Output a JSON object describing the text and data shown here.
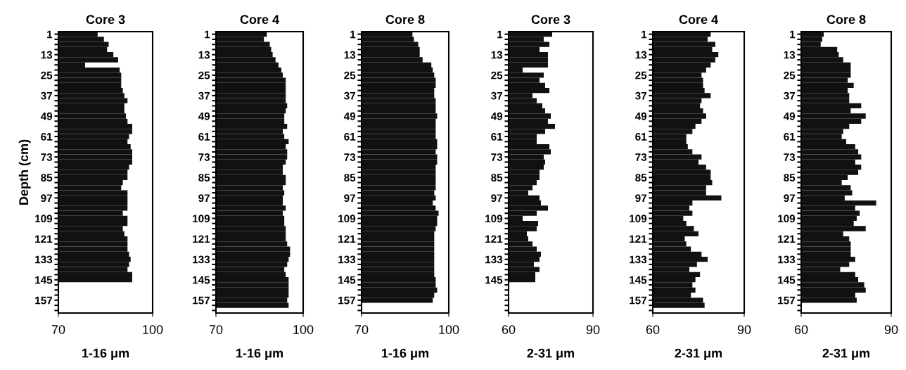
{
  "chart_data": [
    {
      "type": "bar",
      "orientation": "horizontal",
      "title": "Core 3",
      "xlabel": "1-16 μm",
      "ylabel": "Depth (cm)",
      "color": "#111111",
      "xlim": [
        70,
        100
      ],
      "xticks": [
        70,
        100
      ],
      "categories": [
        "1",
        null,
        null,
        null,
        "13",
        null,
        null,
        null,
        "25",
        null,
        null,
        null,
        "37",
        null,
        null,
        null,
        "49",
        null,
        null,
        null,
        "61",
        null,
        null,
        null,
        "73",
        null,
        null,
        null,
        "85",
        null,
        null,
        null,
        "97",
        null,
        null,
        null,
        "109",
        null,
        null,
        null,
        "121",
        null,
        null,
        null,
        "133",
        null,
        null,
        null,
        "145",
        null,
        null,
        null,
        "157",
        null,
        null
      ],
      "values": [
        82.5,
        84.5,
        86,
        85.5,
        87.5,
        89,
        78.5,
        89.5,
        90,
        90,
        90,
        90.5,
        91,
        92,
        91,
        91,
        91.5,
        92,
        93.5,
        93.5,
        92.5,
        92,
        93,
        93.5,
        93.5,
        93.5,
        92.5,
        92,
        92,
        90.5,
        90,
        92,
        92,
        92,
        92,
        90.5,
        92,
        92,
        90.5,
        91,
        92,
        92,
        92,
        92.5,
        93,
        92.5,
        92,
        93.5,
        93.5,
        null,
        null,
        null,
        null,
        null,
        null
      ]
    },
    {
      "type": "bar",
      "orientation": "horizontal",
      "title": "Core 4",
      "xlabel": "1-16 μm",
      "color": "#111111",
      "xlim": [
        70,
        100
      ],
      "xticks": [
        70,
        100
      ],
      "categories": [
        "1",
        null,
        null,
        null,
        "13",
        null,
        null,
        null,
        "25",
        null,
        null,
        null,
        "37",
        null,
        null,
        null,
        "49",
        null,
        null,
        null,
        "61",
        null,
        null,
        null,
        "73",
        null,
        null,
        null,
        "85",
        null,
        null,
        null,
        "97",
        null,
        null,
        null,
        "109",
        null,
        null,
        null,
        "121",
        null,
        null,
        null,
        "133",
        null,
        null,
        null,
        "145",
        null,
        null,
        null,
        "157",
        null,
        null
      ],
      "values": [
        87.5,
        86.5,
        88.5,
        89,
        89.5,
        90.5,
        91.5,
        92.5,
        93,
        94,
        94,
        94,
        94,
        94,
        94.5,
        94,
        93.5,
        93.5,
        94.5,
        93,
        93.5,
        95,
        94,
        94.5,
        94.5,
        94,
        93,
        93,
        94,
        94,
        93,
        93.5,
        93,
        93,
        94,
        93,
        93.5,
        93.5,
        94,
        94,
        94,
        94.5,
        95.5,
        95.5,
        95,
        94.5,
        93.5,
        94,
        95,
        95,
        95,
        95,
        94.5,
        95,
        null
      ]
    },
    {
      "type": "bar",
      "orientation": "horizontal",
      "title": "Core 8",
      "xlabel": "1-16 μm",
      "color": "#111111",
      "xlim": [
        70,
        100
      ],
      "xticks": [
        70,
        100
      ],
      "categories": [
        "1",
        null,
        null,
        null,
        "13",
        null,
        null,
        null,
        "25",
        null,
        null,
        null,
        "37",
        null,
        null,
        null,
        "49",
        null,
        null,
        null,
        "61",
        null,
        null,
        null,
        "73",
        null,
        null,
        null,
        "85",
        null,
        null,
        null,
        "97",
        null,
        null,
        null,
        "109",
        null,
        null,
        null,
        "121",
        null,
        null,
        null,
        "133",
        null,
        null,
        null,
        "145",
        null,
        null,
        null,
        "157",
        null,
        null
      ],
      "values": [
        87.5,
        88,
        89.5,
        90,
        90,
        91,
        94,
        94.5,
        95,
        95.5,
        95.5,
        95,
        95,
        95.5,
        95.5,
        95.5,
        96,
        95.5,
        95.5,
        95.5,
        95.5,
        96,
        96,
        95.5,
        96,
        96,
        95.5,
        95.5,
        95.5,
        95.5,
        95.5,
        95,
        95.5,
        94.5,
        95.5,
        96.5,
        96,
        96,
        95.5,
        95,
        95,
        95,
        95,
        95,
        95,
        95,
        95,
        95,
        95.5,
        95.5,
        96,
        95,
        94.5,
        null,
        null
      ]
    },
    {
      "type": "bar",
      "orientation": "horizontal",
      "title": "Core 3",
      "xlabel": "2-31 μm",
      "color": "#111111",
      "xlim": [
        60,
        90
      ],
      "xticks": [
        60,
        90
      ],
      "categories": [
        "1",
        null,
        null,
        null,
        "13",
        null,
        null,
        null,
        "25",
        null,
        null,
        null,
        "37",
        null,
        null,
        null,
        "49",
        null,
        null,
        null,
        "61",
        null,
        null,
        null,
        "73",
        null,
        null,
        null,
        "85",
        null,
        null,
        null,
        "97",
        null,
        null,
        null,
        "109",
        null,
        null,
        null,
        "121",
        null,
        null,
        null,
        "133",
        null,
        null,
        null,
        "145",
        null,
        null,
        null,
        null,
        null,
        null
      ],
      "values": [
        75.5,
        72.5,
        74.5,
        71,
        74,
        74,
        74,
        65,
        72.5,
        71,
        73,
        74.5,
        68.5,
        70,
        72,
        73,
        75,
        74,
        76.5,
        73,
        70,
        70,
        74.5,
        75,
        72.5,
        73,
        72.5,
        71,
        71,
        70,
        68.5,
        67,
        71,
        71.5,
        74,
        70,
        65,
        70.5,
        70,
        66.5,
        67,
        68.5,
        70,
        71.5,
        71,
        69,
        71,
        69.5,
        69.5,
        null,
        null,
        null,
        null,
        null,
        null
      ]
    },
    {
      "type": "bar",
      "orientation": "horizontal",
      "title": "Core 4",
      "xlabel": "2-31 μm",
      "color": "#111111",
      "xlim": [
        60,
        90
      ],
      "xticks": [
        60,
        90
      ],
      "categories": [
        "1",
        null,
        null,
        null,
        "13",
        null,
        null,
        null,
        "25",
        null,
        null,
        null,
        "37",
        null,
        null,
        null,
        "49",
        null,
        null,
        null,
        "61",
        null,
        null,
        null,
        "73",
        null,
        null,
        null,
        "85",
        null,
        null,
        null,
        "97",
        null,
        null,
        null,
        "109",
        null,
        null,
        null,
        "121",
        null,
        null,
        null,
        "133",
        null,
        null,
        null,
        "145",
        null,
        null,
        null,
        "157",
        null,
        null
      ],
      "values": [
        79,
        78,
        80.5,
        79.5,
        81.5,
        80.5,
        79,
        77.5,
        76,
        76.5,
        76.5,
        77,
        79,
        76,
        75.5,
        76.5,
        77.5,
        76,
        74,
        73,
        71,
        71,
        71.5,
        73,
        76,
        75,
        77.5,
        79,
        79,
        79.5,
        77.5,
        77.5,
        82.5,
        73,
        72,
        73,
        70,
        71,
        73.5,
        75,
        70.5,
        71,
        72.5,
        76,
        78,
        74.5,
        72,
        75.5,
        74,
        73,
        74,
        72.5,
        76.5,
        77,
        null
      ]
    },
    {
      "type": "bar",
      "orientation": "horizontal",
      "title": "Core 8",
      "xlabel": "2-31 μm",
      "color": "#111111",
      "xlim": [
        60,
        90
      ],
      "xticks": [
        60,
        90
      ],
      "categories": [
        "1",
        null,
        null,
        null,
        "13",
        null,
        null,
        null,
        "25",
        null,
        null,
        null,
        "37",
        null,
        null,
        null,
        "49",
        null,
        null,
        null,
        "61",
        null,
        null,
        null,
        "73",
        null,
        null,
        null,
        "85",
        null,
        null,
        null,
        "97",
        null,
        null,
        null,
        "109",
        null,
        null,
        null,
        "121",
        null,
        null,
        null,
        "133",
        null,
        null,
        null,
        "145",
        null,
        null,
        null,
        "157",
        null,
        null
      ],
      "values": [
        67.5,
        67,
        66.5,
        72,
        72.5,
        74,
        76.5,
        76.5,
        76.5,
        75.5,
        77.5,
        75.5,
        76,
        76,
        80,
        76.5,
        81.5,
        80,
        76,
        74,
        73.5,
        75,
        78,
        79,
        80,
        78,
        80,
        79,
        75.5,
        73.5,
        76.5,
        77,
        74.5,
        85,
        78,
        79.5,
        78.5,
        77.5,
        81.5,
        74,
        76,
        76.5,
        76.5,
        76.5,
        78,
        76,
        73,
        78,
        79,
        81,
        81.5,
        78,
        78.5,
        null,
        null
      ]
    }
  ]
}
